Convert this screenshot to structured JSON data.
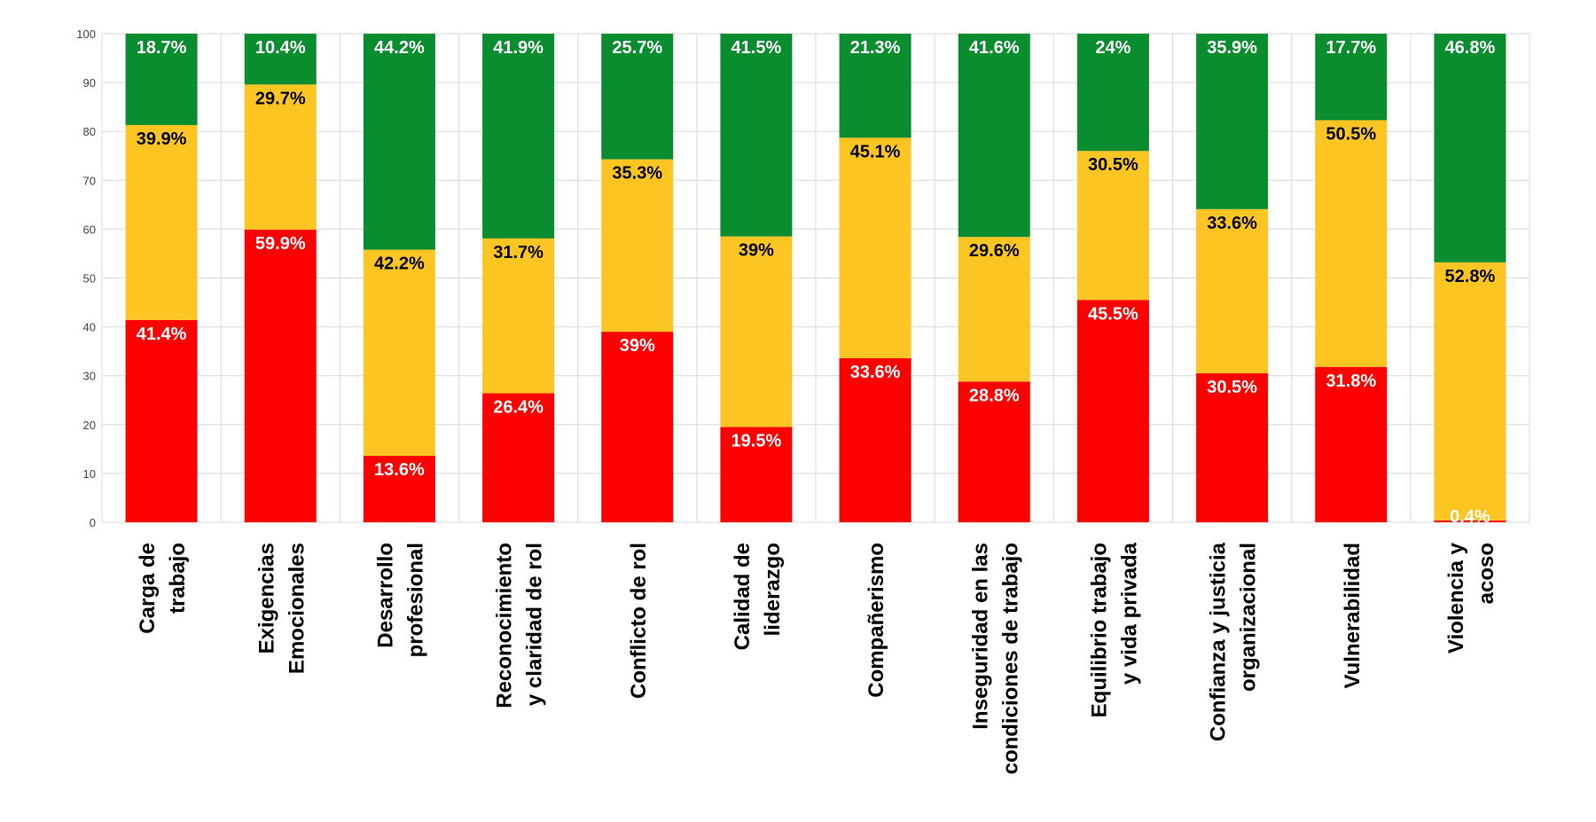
{
  "colors": {
    "red": "#FF0000",
    "yellow": "#FCC522",
    "green": "#0A8D2F",
    "grid": "#D9D9D9"
  },
  "chart_data": {
    "type": "bar",
    "stacked": true,
    "ylim": [
      0,
      100
    ],
    "yticks": [
      "0",
      "10",
      "20",
      "30",
      "40",
      "50",
      "60",
      "70",
      "80",
      "90",
      "100"
    ],
    "grid": true,
    "categories": [
      [
        "Carga de",
        "trabajo"
      ],
      [
        "Exigencias",
        "Emocionales"
      ],
      [
        "Desarrollo",
        "profesional"
      ],
      [
        "Reconocimiento",
        "y claridad de rol"
      ],
      [
        "Conflicto de rol"
      ],
      [
        "Calidad de",
        "liderazgo"
      ],
      [
        "Compañerismo"
      ],
      [
        "Inseguridad en las",
        "condiciones de trabajo"
      ],
      [
        "Equilibrio trabajo",
        "y vida privada"
      ],
      [
        "Confianza y justicia",
        "organizacional"
      ],
      [
        "Vulnerabilidad"
      ],
      [
        "Violencia y",
        "acoso"
      ]
    ],
    "series": [
      {
        "color": "#FF0000",
        "text_color": "#FFFFFF",
        "values": [
          41.4,
          59.9,
          13.6,
          26.4,
          39,
          19.5,
          33.6,
          28.8,
          45.5,
          30.5,
          31.8,
          0.4
        ],
        "labels": [
          "41.4%",
          "59.9%",
          "13.6%",
          "26.4%",
          "39%",
          "19.5%",
          "33.6%",
          "28.8%",
          "45.5%",
          "30.5%",
          "31.8%",
          "0.4%"
        ]
      },
      {
        "color": "#FCC522",
        "text_color": "#000000",
        "values": [
          39.9,
          29.7,
          42.2,
          31.7,
          35.3,
          39,
          45.1,
          29.6,
          30.5,
          33.6,
          50.5,
          52.8
        ],
        "labels": [
          "39.9%",
          "29.7%",
          "42.2%",
          "31.7%",
          "35.3%",
          "39%",
          "45.1%",
          "29.6%",
          "30.5%",
          "33.6%",
          "50.5%",
          "52.8%"
        ]
      },
      {
        "color": "#0A8D2F",
        "text_color": "#FFFFFF",
        "values": [
          18.7,
          10.4,
          44.2,
          41.9,
          25.7,
          41.5,
          21.3,
          41.6,
          24,
          35.9,
          17.7,
          46.8
        ],
        "labels": [
          "18.7%",
          "10.4%",
          "44.2%",
          "41.9%",
          "25.7%",
          "41.5%",
          "21.3%",
          "41.6%",
          "24%",
          "35.9%",
          "17.7%",
          "46.8%"
        ]
      }
    ]
  }
}
